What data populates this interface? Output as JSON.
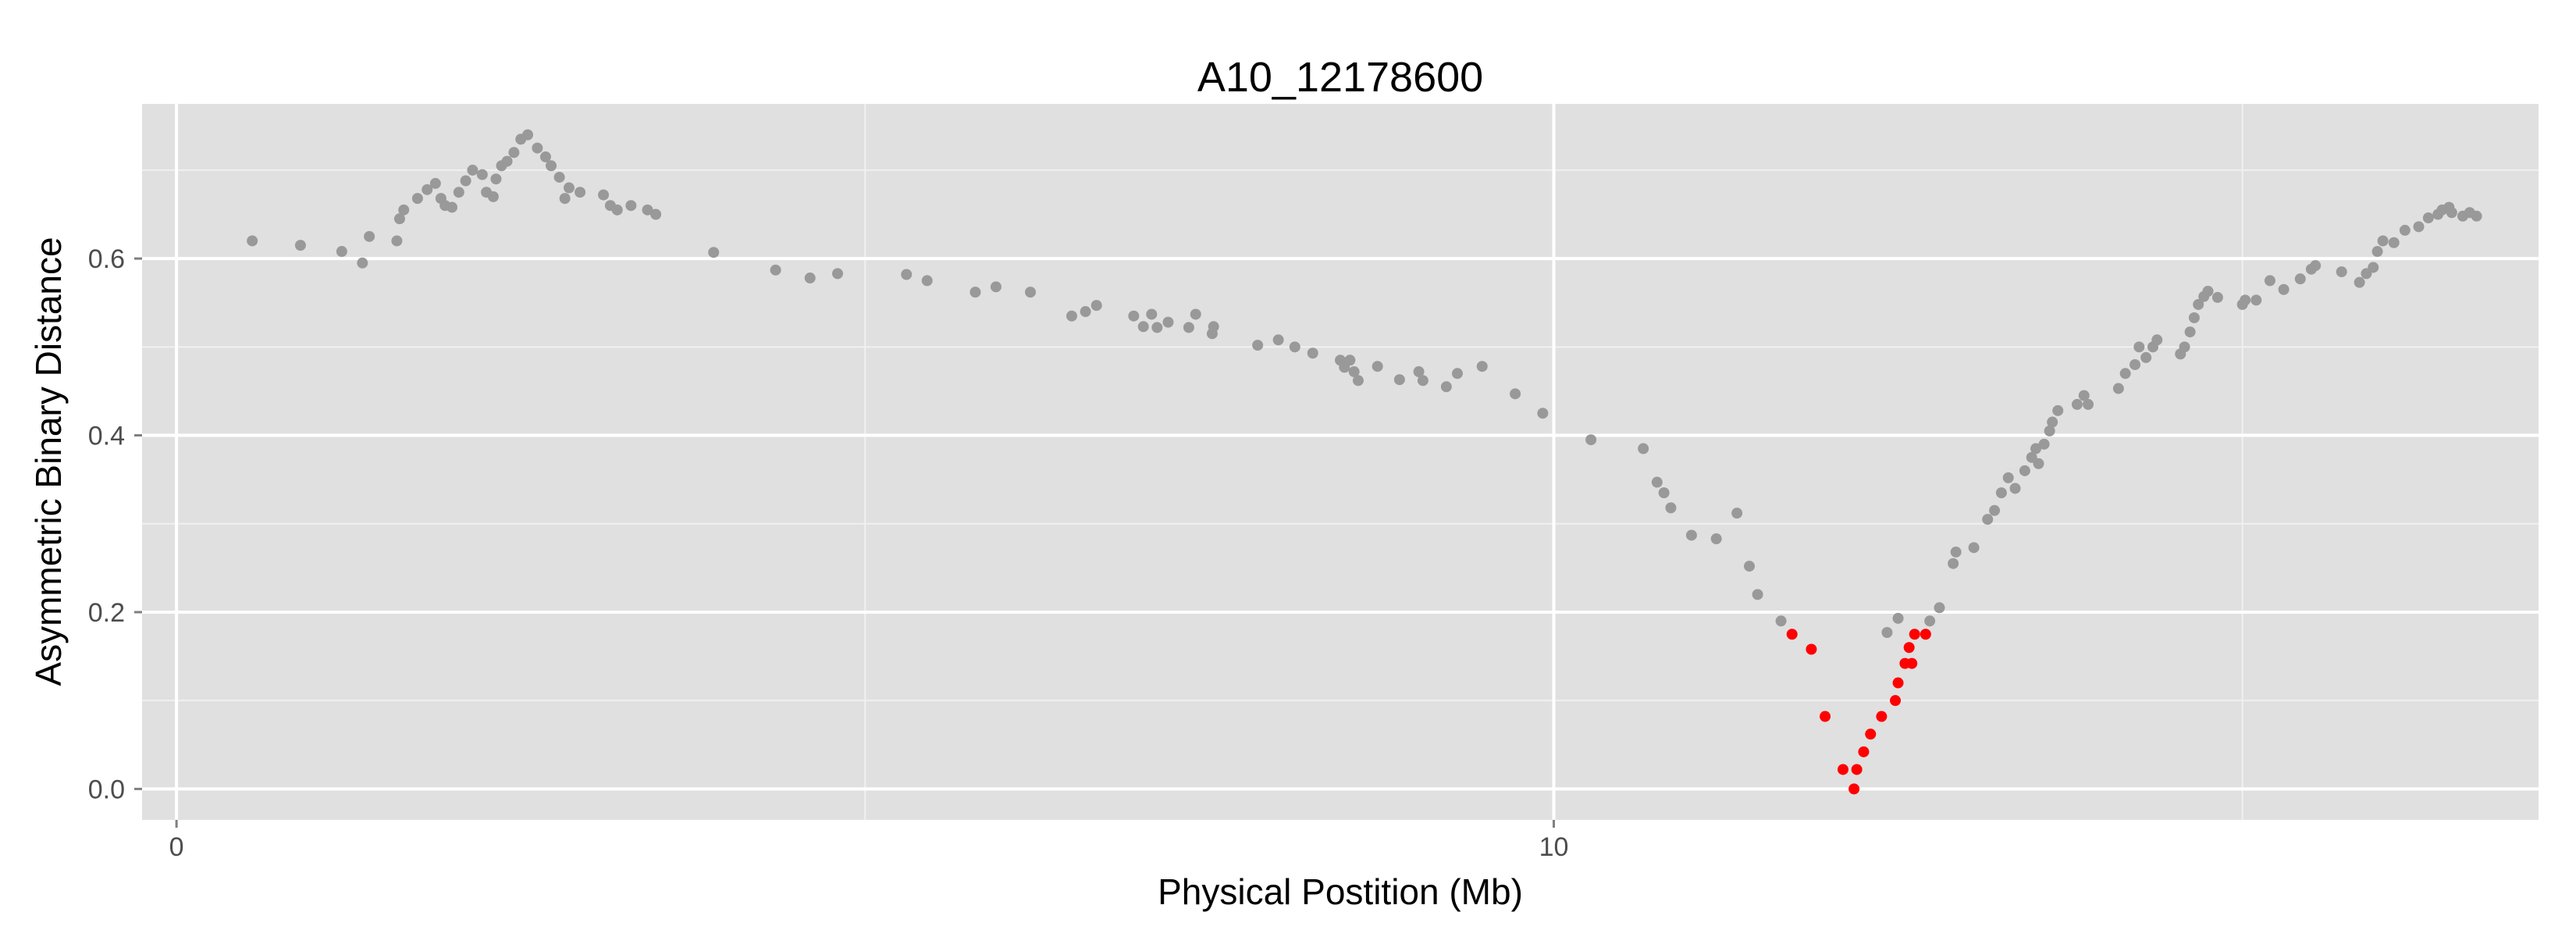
{
  "chart_data": {
    "type": "scatter",
    "title": "A10_12178600",
    "xlabel": "Physical Postition (Mb)",
    "ylabel": "Asymmetric Binary Distance",
    "xlim": [
      -0.25,
      17.15
    ],
    "ylim": [
      -0.035,
      0.775
    ],
    "x_major_ticks": [
      0,
      10
    ],
    "x_major_tick_labels": [
      "0",
      "10"
    ],
    "x_minor_gridlines": [
      5,
      15
    ],
    "y_major_ticks": [
      0.0,
      0.2,
      0.4,
      0.6
    ],
    "y_major_tick_labels": [
      "0.0",
      "0.2",
      "0.4",
      "0.6"
    ],
    "y_minor_gridlines": [
      0.1,
      0.3,
      0.5,
      0.7
    ],
    "grid": true,
    "legend": "none",
    "background_color": "#e0e0e0",
    "series": [
      {
        "color": "#999999",
        "points": [
          [
            0.55,
            0.62
          ],
          [
            0.9,
            0.615
          ],
          [
            1.2,
            0.608
          ],
          [
            1.35,
            0.595
          ],
          [
            1.4,
            0.625
          ],
          [
            1.6,
            0.62
          ],
          [
            1.62,
            0.645
          ],
          [
            1.65,
            0.655
          ],
          [
            1.75,
            0.668
          ],
          [
            1.82,
            0.678
          ],
          [
            1.88,
            0.685
          ],
          [
            1.92,
            0.668
          ],
          [
            1.95,
            0.66
          ],
          [
            2.0,
            0.658
          ],
          [
            2.05,
            0.675
          ],
          [
            2.1,
            0.688
          ],
          [
            2.15,
            0.7
          ],
          [
            2.22,
            0.695
          ],
          [
            2.25,
            0.675
          ],
          [
            2.3,
            0.67
          ],
          [
            2.32,
            0.69
          ],
          [
            2.36,
            0.705
          ],
          [
            2.4,
            0.71
          ],
          [
            2.45,
            0.72
          ],
          [
            2.5,
            0.735
          ],
          [
            2.55,
            0.74
          ],
          [
            2.62,
            0.725
          ],
          [
            2.68,
            0.715
          ],
          [
            2.72,
            0.705
          ],
          [
            2.78,
            0.692
          ],
          [
            2.82,
            0.668
          ],
          [
            2.85,
            0.68
          ],
          [
            2.93,
            0.675
          ],
          [
            3.1,
            0.672
          ],
          [
            3.15,
            0.66
          ],
          [
            3.2,
            0.655
          ],
          [
            3.3,
            0.66
          ],
          [
            3.42,
            0.655
          ],
          [
            3.48,
            0.65
          ],
          [
            3.9,
            0.607
          ],
          [
            4.35,
            0.587
          ],
          [
            4.6,
            0.578
          ],
          [
            4.8,
            0.583
          ],
          [
            5.3,
            0.582
          ],
          [
            5.45,
            0.575
          ],
          [
            5.8,
            0.562
          ],
          [
            5.95,
            0.568
          ],
          [
            6.2,
            0.562
          ],
          [
            6.5,
            0.535
          ],
          [
            6.6,
            0.54
          ],
          [
            6.68,
            0.547
          ],
          [
            6.95,
            0.535
          ],
          [
            7.02,
            0.523
          ],
          [
            7.08,
            0.537
          ],
          [
            7.12,
            0.522
          ],
          [
            7.2,
            0.528
          ],
          [
            7.35,
            0.522
          ],
          [
            7.4,
            0.537
          ],
          [
            7.52,
            0.515
          ],
          [
            7.53,
            0.523
          ],
          [
            7.85,
            0.502
          ],
          [
            8.0,
            0.508
          ],
          [
            8.12,
            0.5
          ],
          [
            8.25,
            0.493
          ],
          [
            8.45,
            0.485
          ],
          [
            8.48,
            0.477
          ],
          [
            8.52,
            0.485
          ],
          [
            8.55,
            0.472
          ],
          [
            8.58,
            0.462
          ],
          [
            8.72,
            0.478
          ],
          [
            8.88,
            0.463
          ],
          [
            9.02,
            0.472
          ],
          [
            9.05,
            0.462
          ],
          [
            9.22,
            0.455
          ],
          [
            9.3,
            0.47
          ],
          [
            9.48,
            0.478
          ],
          [
            9.72,
            0.447
          ],
          [
            9.92,
            0.425
          ],
          [
            10.27,
            0.395
          ],
          [
            10.65,
            0.385
          ],
          [
            10.75,
            0.347
          ],
          [
            10.8,
            0.335
          ],
          [
            10.85,
            0.318
          ],
          [
            11.0,
            0.287
          ],
          [
            11.18,
            0.283
          ],
          [
            11.33,
            0.312
          ],
          [
            11.42,
            0.252
          ],
          [
            11.48,
            0.22
          ],
          [
            11.65,
            0.19
          ],
          [
            12.42,
            0.177
          ],
          [
            12.5,
            0.193
          ],
          [
            12.73,
            0.19
          ],
          [
            12.8,
            0.205
          ],
          [
            12.9,
            0.255
          ],
          [
            12.92,
            0.268
          ],
          [
            13.05,
            0.273
          ],
          [
            13.15,
            0.305
          ],
          [
            13.2,
            0.315
          ],
          [
            13.25,
            0.335
          ],
          [
            13.3,
            0.352
          ],
          [
            13.35,
            0.34
          ],
          [
            13.42,
            0.36
          ],
          [
            13.47,
            0.375
          ],
          [
            13.5,
            0.385
          ],
          [
            13.52,
            0.368
          ],
          [
            13.56,
            0.39
          ],
          [
            13.6,
            0.405
          ],
          [
            13.62,
            0.415
          ],
          [
            13.66,
            0.428
          ],
          [
            13.8,
            0.435
          ],
          [
            13.85,
            0.445
          ],
          [
            13.88,
            0.435
          ],
          [
            14.1,
            0.453
          ],
          [
            14.15,
            0.47
          ],
          [
            14.22,
            0.48
          ],
          [
            14.25,
            0.5
          ],
          [
            14.3,
            0.488
          ],
          [
            14.35,
            0.5
          ],
          [
            14.38,
            0.508
          ],
          [
            14.55,
            0.492
          ],
          [
            14.58,
            0.5
          ],
          [
            14.62,
            0.517
          ],
          [
            14.65,
            0.533
          ],
          [
            14.68,
            0.548
          ],
          [
            14.72,
            0.557
          ],
          [
            14.75,
            0.563
          ],
          [
            14.82,
            0.556
          ],
          [
            15.0,
            0.548
          ],
          [
            15.02,
            0.553
          ],
          [
            15.1,
            0.553
          ],
          [
            15.2,
            0.575
          ],
          [
            15.3,
            0.565
          ],
          [
            15.42,
            0.577
          ],
          [
            15.5,
            0.588
          ],
          [
            15.53,
            0.592
          ],
          [
            15.72,
            0.585
          ],
          [
            15.85,
            0.573
          ],
          [
            15.9,
            0.583
          ],
          [
            15.95,
            0.59
          ],
          [
            15.98,
            0.608
          ],
          [
            16.02,
            0.62
          ],
          [
            16.1,
            0.618
          ],
          [
            16.18,
            0.632
          ],
          [
            16.28,
            0.636
          ],
          [
            16.35,
            0.646
          ],
          [
            16.42,
            0.65
          ],
          [
            16.45,
            0.655
          ],
          [
            16.5,
            0.658
          ],
          [
            16.52,
            0.652
          ],
          [
            16.6,
            0.648
          ],
          [
            16.65,
            0.652
          ],
          [
            16.7,
            0.648
          ]
        ]
      },
      {
        "color": "#ff0000",
        "points": [
          [
            11.73,
            0.175
          ],
          [
            11.87,
            0.158
          ],
          [
            11.97,
            0.082
          ],
          [
            12.1,
            0.022
          ],
          [
            12.18,
            0.0
          ],
          [
            12.2,
            0.022
          ],
          [
            12.25,
            0.042
          ],
          [
            12.3,
            0.062
          ],
          [
            12.38,
            0.082
          ],
          [
            12.48,
            0.1
          ],
          [
            12.5,
            0.12
          ],
          [
            12.55,
            0.142
          ],
          [
            12.58,
            0.16
          ],
          [
            12.6,
            0.142
          ],
          [
            12.62,
            0.175
          ],
          [
            12.7,
            0.175
          ]
        ]
      }
    ]
  }
}
